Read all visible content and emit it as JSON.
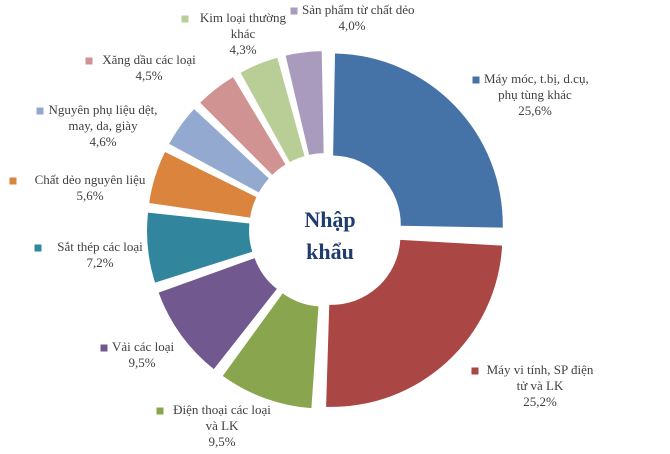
{
  "chart_data": {
    "type": "pie",
    "variant": "exploded-doughnut",
    "center_label_lines": [
      "Nhập",
      "khẩu"
    ],
    "slices": [
      {
        "label_lines": [
          "Máy móc, t.bị, d.cụ,",
          "phụ tùng khác"
        ],
        "value": 25.6,
        "value_label": "25,6%",
        "color": "#4572A7"
      },
      {
        "label_lines": [
          "Máy vi tính, SP điện",
          "tử và LK"
        ],
        "value": 25.2,
        "value_label": "25,2%",
        "color": "#AA4643"
      },
      {
        "label_lines": [
          "Điện thoại các loại",
          "và LK"
        ],
        "value": 9.5,
        "value_label": "9,5%",
        "color": "#89A54E"
      },
      {
        "label_lines": [
          "Vải các loại"
        ],
        "value": 9.5,
        "value_label": "9,5%",
        "color": "#71588F"
      },
      {
        "label_lines": [
          "Sắt thép các loại"
        ],
        "value": 7.2,
        "value_label": "7,2%",
        "color": "#31859C"
      },
      {
        "label_lines": [
          "Chất dẻo nguyên liệu"
        ],
        "value": 5.6,
        "value_label": "5,6%",
        "color": "#DB843D"
      },
      {
        "label_lines": [
          "Nguyên phụ liệu dệt,",
          "may, da, giày"
        ],
        "value": 4.6,
        "value_label": "4,6%",
        "color": "#93A9CF"
      },
      {
        "label_lines": [
          "Xăng dầu các loại"
        ],
        "value": 4.5,
        "value_label": "4,5%",
        "color": "#D19392"
      },
      {
        "label_lines": [
          "Kim loại thường",
          "khác"
        ],
        "value": 4.3,
        "value_label": "4,3%",
        "color": "#B9CD96"
      },
      {
        "label_lines": [
          "Sản phẩm từ chất dẻo"
        ],
        "value": 4.0,
        "value_label": "4,0%",
        "color": "#A99BBD"
      }
    ]
  }
}
